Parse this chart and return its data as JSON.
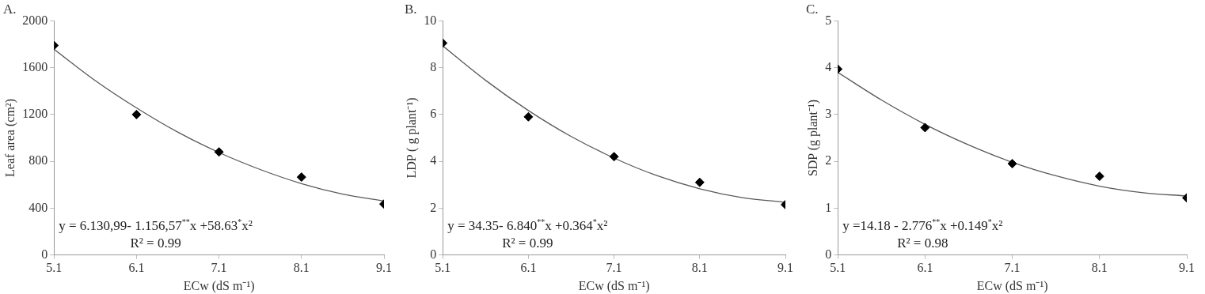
{
  "chart_data": [
    {
      "type": "scatter",
      "title": "A.",
      "xlabel": "ECw (dS m⁻¹)",
      "ylabel": "Leaf area (cm²)",
      "xlim": [
        5.1,
        9.1
      ],
      "xticks": [
        5.1,
        6.1,
        7.1,
        8.1,
        9.1
      ],
      "ylim": [
        0,
        2000
      ],
      "yticks": [
        0,
        400,
        800,
        1200,
        1600,
        2000
      ],
      "grid": false,
      "series": [
        {
          "marker": "diamond",
          "color": "#000000",
          "x": [
            5.1,
            6.1,
            7.1,
            8.1,
            9.1
          ],
          "values": [
            1790,
            1200,
            880,
            665,
            435
          ]
        },
        {
          "type": "line",
          "marker": "none",
          "color": "#595959",
          "x": [
            5.1,
            5.6,
            6.1,
            6.6,
            7.1,
            7.6,
            8.1,
            8.6,
            9.1
          ],
          "values": [
            1758,
            1490,
            1257,
            1050,
            875,
            730,
            610,
            520,
            460
          ]
        }
      ],
      "annotations": [
        "y = 6.130,99- 1.156,57$^{**}$x +58.63$^{*}$x²",
        "R² = 0.99"
      ]
    },
    {
      "type": "scatter",
      "title": "B.",
      "xlabel": "ECw (dS m⁻¹)",
      "ylabel": "LDP ( g plant⁻¹)",
      "xlim": [
        5.1,
        9.1
      ],
      "xticks": [
        5.1,
        6.1,
        7.1,
        8.1,
        9.1
      ],
      "ylim": [
        0,
        10
      ],
      "yticks": [
        0,
        2,
        4,
        6,
        8,
        10
      ],
      "grid": false,
      "series": [
        {
          "marker": "diamond",
          "color": "#000000",
          "x": [
            5.1,
            6.1,
            7.1,
            8.1,
            9.1
          ],
          "values": [
            9.05,
            5.9,
            4.2,
            3.1,
            2.15
          ]
        },
        {
          "type": "line",
          "marker": "none",
          "color": "#595959",
          "x": [
            5.1,
            5.6,
            6.1,
            6.6,
            7.1,
            7.6,
            8.1,
            8.6,
            9.1
          ],
          "values": [
            8.93,
            7.46,
            6.17,
            5.06,
            4.14,
            3.39,
            2.83,
            2.45,
            2.25
          ]
        }
      ],
      "annotations": [
        "y = 34.35- 6.840$^{**}$x +0.364$^{*}$x²",
        "R² = 0.99"
      ]
    },
    {
      "type": "scatter",
      "title": "C.",
      "xlabel": "ECw (dS m⁻¹)",
      "ylabel": "SDP (g plant⁻¹)",
      "xlim": [
        5.1,
        9.1
      ],
      "xticks": [
        5.1,
        6.1,
        7.1,
        8.1,
        9.1
      ],
      "ylim": [
        0,
        5
      ],
      "yticks": [
        0,
        1,
        2,
        3,
        4,
        5
      ],
      "grid": false,
      "series": [
        {
          "marker": "diamond",
          "color": "#000000",
          "x": [
            5.1,
            6.1,
            7.1,
            8.1,
            9.1
          ],
          "values": [
            3.97,
            2.72,
            1.95,
            1.68,
            1.22
          ]
        },
        {
          "type": "line",
          "marker": "none",
          "color": "#595959",
          "x": [
            5.1,
            5.6,
            6.1,
            6.6,
            7.1,
            7.6,
            8.1,
            8.6,
            9.1
          ],
          "values": [
            3.9,
            3.31,
            2.79,
            2.35,
            1.98,
            1.69,
            1.47,
            1.33,
            1.26
          ]
        }
      ],
      "annotations": [
        "y =14.18 - 2.776$^{**}$x +0.149$^{*}$x²",
        "R² = 0.98"
      ]
    }
  ]
}
